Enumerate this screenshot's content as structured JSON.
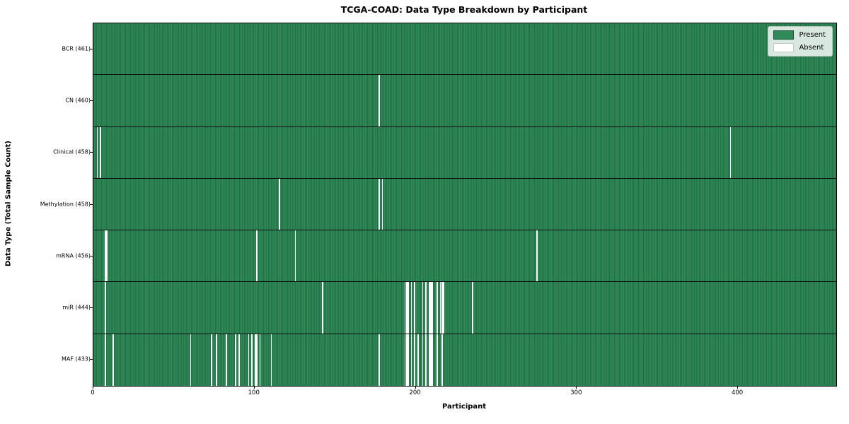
{
  "window": {
    "title": "TCGA-COAD: Data Type Breakdown by Participant"
  },
  "colors": {
    "present": "#2e8b57",
    "present_edge": "#1c4f35",
    "absent": "#ffffff",
    "row_divider": "#0d0d0d",
    "axis": "#000000",
    "legend_border": "#b9c4bc"
  },
  "legend": {
    "present_label": "Present",
    "absent_label": "Absent"
  },
  "chart_data": {
    "type": "heatmap",
    "title": "TCGA-COAD: Data Type Breakdown by Participant",
    "xlabel": "Participant",
    "ylabel": "Data Type (Total Sample Count)",
    "x_ticks": [
      0,
      100,
      200,
      300,
      400
    ],
    "x_range": [
      0,
      461
    ],
    "total_participants": 461,
    "legend_entries": [
      "Present",
      "Absent"
    ],
    "legend_position": "upper right",
    "grid": false,
    "rows": [
      {
        "label": "BCR (461)",
        "data_type": "BCR",
        "present_count": 461,
        "absent_count": 0,
        "absent_participants": []
      },
      {
        "label": "CN (460)",
        "data_type": "CN",
        "present_count": 460,
        "absent_count": 1,
        "absent_participants": [
          177
        ]
      },
      {
        "label": "Clinical (458)",
        "data_type": "Clinical",
        "present_count": 458,
        "absent_count": 3,
        "absent_participants": [
          2,
          4,
          395
        ]
      },
      {
        "label": "Methylation (458)",
        "data_type": "Methylation",
        "present_count": 458,
        "absent_count": 3,
        "absent_participants": [
          115,
          177,
          179
        ]
      },
      {
        "label": "mRNA (456)",
        "data_type": "mRNA",
        "present_count": 456,
        "absent_count": 5,
        "absent_participants": [
          7,
          8,
          101,
          125,
          275
        ]
      },
      {
        "label": "miR (444)",
        "data_type": "miR",
        "present_count": 444,
        "absent_count": 17,
        "absent_participants": [
          7,
          142,
          193,
          194,
          195,
          197,
          199,
          204,
          206,
          208,
          209,
          210,
          213,
          215,
          216,
          217,
          235
        ]
      },
      {
        "label": "MAF (433)",
        "data_type": "MAF",
        "present_count": 433,
        "absent_count": 28,
        "absent_participants": [
          7,
          12,
          60,
          73,
          76,
          82,
          88,
          90,
          96,
          98,
          100,
          101,
          103,
          110,
          177,
          193,
          194,
          195,
          197,
          199,
          201,
          204,
          206,
          208,
          209,
          210,
          213,
          216
        ]
      }
    ]
  }
}
